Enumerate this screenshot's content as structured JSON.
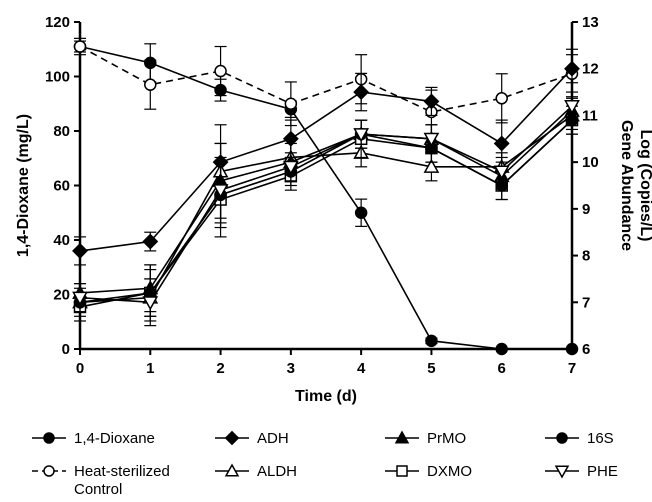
{
  "chart_data": {
    "type": "line",
    "xlabel": "Time (d)",
    "ylabel_left": "1,4-Dioxane (mg/L)",
    "ylabel_right_lines": [
      "Gene Abundance",
      "Log (Copies/L)"
    ],
    "x": [
      0,
      1,
      2,
      3,
      4,
      5,
      6,
      7
    ],
    "x_ticks": [
      "0",
      "1",
      "2",
      "3",
      "4",
      "5",
      "6",
      "7"
    ],
    "ylim_left": [
      0,
      120
    ],
    "y_ticks_left": [
      "0",
      "20",
      "40",
      "60",
      "80",
      "100",
      "120"
    ],
    "ylim_right": [
      6,
      13
    ],
    "y_ticks_right": [
      "6",
      "7",
      "8",
      "9",
      "10",
      "11",
      "12",
      "13"
    ],
    "grid": false,
    "legend_position": "bottom",
    "series": [
      {
        "name": "1,4-Dioxane",
        "axis": "left",
        "marker": "circle-filled",
        "dash": false,
        "values": [
          111,
          105,
          95,
          88,
          50,
          3,
          0,
          0
        ],
        "errors": [
          2,
          7,
          4,
          3,
          5,
          1,
          0,
          0
        ]
      },
      {
        "name": "Heat-sterilized Control",
        "name_lines": [
          "Heat-sterilized",
          "Control"
        ],
        "axis": "left",
        "marker": "circle-open",
        "dash": true,
        "values": [
          111,
          97,
          102,
          90,
          99,
          87,
          92,
          101
        ],
        "errors": [
          3,
          9,
          9,
          8,
          9,
          8,
          9,
          9
        ]
      },
      {
        "name": "ADH",
        "axis": "right",
        "marker": "diamond-filled",
        "dash": false,
        "values": [
          8.1,
          8.3,
          10.0,
          10.5,
          11.5,
          11.3,
          10.4,
          12.0
        ],
        "errors": [
          0.3,
          0.2,
          0.8,
          0.4,
          0.4,
          0.3,
          0.5,
          0.3
        ]
      },
      {
        "name": "ALDH",
        "axis": "right",
        "marker": "triangle-up-open",
        "dash": false,
        "values": [
          7.0,
          7.1,
          9.8,
          10.1,
          10.2,
          9.9,
          9.9,
          11.0
        ],
        "errors": [
          0.2,
          0.4,
          0.6,
          0.4,
          0.3,
          0.3,
          0.3,
          0.3
        ]
      },
      {
        "name": "PrMO",
        "axis": "right",
        "marker": "triangle-up-filled",
        "dash": false,
        "values": [
          7.2,
          7.3,
          9.6,
          10.0,
          10.6,
          10.5,
          9.7,
          11.1
        ],
        "errors": [
          0.2,
          0.5,
          0.8,
          0.4,
          0.3,
          0.3,
          0.3,
          0.3
        ]
      },
      {
        "name": "DXMO",
        "axis": "right",
        "marker": "square-open",
        "dash": false,
        "values": [
          6.9,
          7.2,
          9.2,
          9.7,
          10.5,
          10.3,
          9.5,
          10.9
        ],
        "errors": [
          0.3,
          0.5,
          0.8,
          0.3,
          0.4,
          0.3,
          0.3,
          0.3
        ]
      },
      {
        "name": "16S",
        "axis": "right",
        "marker": "circle-filled",
        "dash": false,
        "values": [
          7.0,
          7.2,
          9.3,
          9.8,
          10.6,
          10.3,
          9.5,
          10.9
        ],
        "errors": [
          0.3,
          0.6,
          0.7,
          0.3,
          0.3,
          0.3,
          0.3,
          0.3
        ]
      },
      {
        "name": "PHE",
        "axis": "right",
        "marker": "triangle-down-open",
        "dash": false,
        "values": [
          7.1,
          7.0,
          9.4,
          9.9,
          10.6,
          10.5,
          9.8,
          11.2
        ],
        "errors": [
          0.3,
          0.5,
          0.7,
          0.3,
          0.3,
          0.3,
          0.3,
          0.3
        ]
      }
    ],
    "legend_rows": [
      [
        "1,4-Dioxane",
        "ADH",
        "PrMO",
        "16S"
      ],
      [
        "Heat-sterilized Control",
        "ALDH",
        "DXMO",
        "PHE"
      ]
    ]
  }
}
